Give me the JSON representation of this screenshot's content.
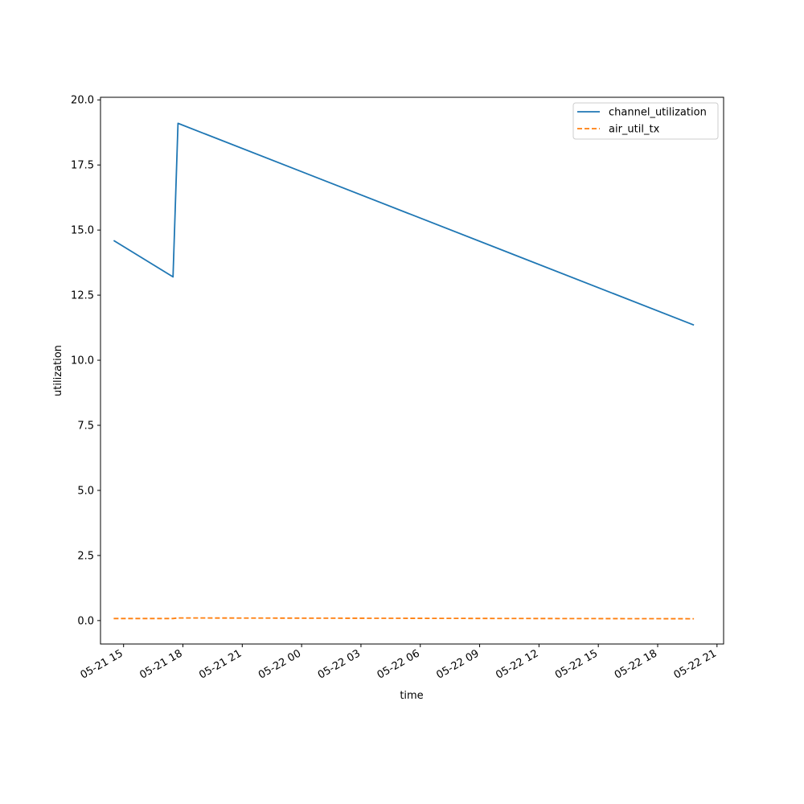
{
  "chart_data": {
    "type": "line",
    "xlabel": "time",
    "ylabel": "utilization",
    "x_ticks": [
      "05-21 15",
      "05-21 18",
      "05-21 21",
      "05-22 00",
      "05-22 03",
      "05-22 06",
      "05-22 09",
      "05-22 12",
      "05-22 15",
      "05-22 18",
      "05-22 21"
    ],
    "y_ticks": [
      "0.0",
      "2.5",
      "5.0",
      "7.5",
      "10.0",
      "12.5",
      "15.0",
      "17.5",
      "20.0"
    ],
    "ylim": [
      -0.9,
      20.1
    ],
    "xlim": [
      "2024-05-21 13:50",
      "2024-05-22 21:20"
    ],
    "grid": false,
    "legend_position": "top-right",
    "series": [
      {
        "name": "channel_utilization",
        "color": "#1f77b4",
        "style": "solid",
        "points": [
          {
            "x": "2024-05-21 14:30",
            "y": 14.6
          },
          {
            "x": "2024-05-21 17:30",
            "y": 13.2
          },
          {
            "x": "2024-05-21 17:45",
            "y": 19.1
          },
          {
            "x": "2024-05-22 19:50",
            "y": 11.35
          }
        ]
      },
      {
        "name": "air_util_tx",
        "color": "#ff7f0e",
        "style": "dashed",
        "points": [
          {
            "x": "2024-05-21 14:30",
            "y": 0.08
          },
          {
            "x": "2024-05-21 17:30",
            "y": 0.08
          },
          {
            "x": "2024-05-21 17:45",
            "y": 0.1
          },
          {
            "x": "2024-05-22 19:50",
            "y": 0.07
          }
        ]
      }
    ]
  }
}
